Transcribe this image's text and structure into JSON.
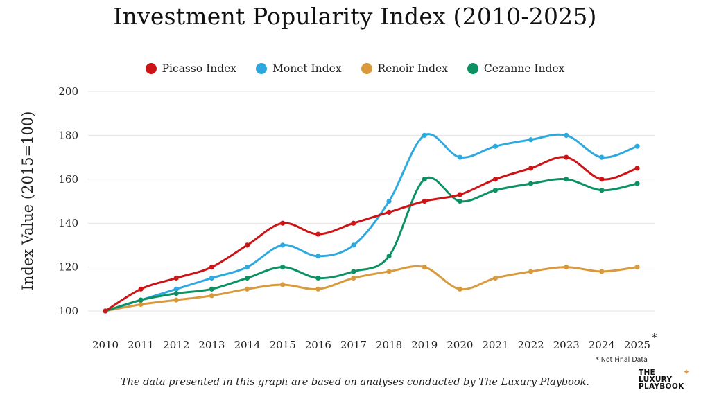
{
  "title": "Investment Popularity Index (2010-2025)",
  "ylabel": "Index Value (2015=100)",
  "footnote": "* Not Final Data",
  "asterisk": "*",
  "caption": "The data presented in this graph are based on analyses conducted by The Luxury Playbook.",
  "logo": {
    "line1": "THE",
    "line2": "LUXURY",
    "line3": "PLAYBOOK",
    "star": "✦"
  },
  "chart_data": {
    "type": "line",
    "title": "Investment Popularity Index (2010-2025)",
    "xlabel": "",
    "ylabel": "Index Value (2015=100)",
    "x": [
      "2010",
      "2011",
      "2012",
      "2013",
      "2014",
      "2015",
      "2016",
      "2017",
      "2018",
      "2019",
      "2020",
      "2021",
      "2022",
      "2023",
      "2024",
      "2025"
    ],
    "ylim": [
      100,
      200
    ],
    "yticks": [
      100,
      120,
      140,
      160,
      180,
      200
    ],
    "grid": "horizontal",
    "legend": "top-center",
    "series": [
      {
        "name": "Picasso Index",
        "color": "#cc1417",
        "values": [
          100,
          110,
          115,
          120,
          130,
          140,
          135,
          140,
          145,
          150,
          153,
          160,
          165,
          170,
          160,
          165
        ]
      },
      {
        "name": "Monet Index",
        "color": "#2ea9df",
        "values": [
          100,
          105,
          110,
          115,
          120,
          130,
          125,
          130,
          150,
          180,
          170,
          175,
          178,
          180,
          170,
          175
        ]
      },
      {
        "name": "Renoir Index",
        "color": "#d89a3c",
        "values": [
          100,
          103,
          105,
          107,
          110,
          112,
          110,
          115,
          118,
          120,
          110,
          115,
          118,
          120,
          118,
          120
        ]
      },
      {
        "name": "Cezanne Index",
        "color": "#0c9163",
        "values": [
          100,
          105,
          108,
          110,
          115,
          120,
          115,
          118,
          125,
          160,
          150,
          155,
          158,
          160,
          155,
          158
        ]
      }
    ]
  }
}
